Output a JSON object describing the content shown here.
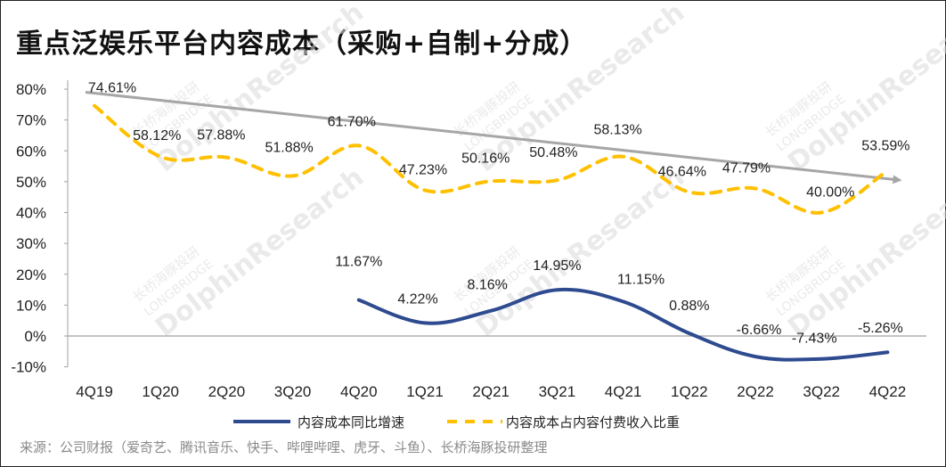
{
  "title": "重点泛娱乐平台内容成本（采购+自制+分成）",
  "source": "来源：公司财报（爱奇艺、腾讯音乐、快手、哔哩哔哩、虎牙、斗鱼）、长桥海豚投研整理",
  "watermark": {
    "line1": "长桥海豚投研",
    "line2": "LONGBRIDGE",
    "line3": "DolphinResearch"
  },
  "colors": {
    "blue": "#2e4b8f",
    "yellow": "#ffc000",
    "trend": "#a6a6a6",
    "axis": "#a0a0a0"
  },
  "chart_data": {
    "type": "line",
    "categories": [
      "4Q19",
      "1Q20",
      "2Q20",
      "3Q20",
      "4Q20",
      "1Q21",
      "2Q21",
      "3Q21",
      "4Q21",
      "1Q22",
      "2Q22",
      "3Q22",
      "4Q22"
    ],
    "yticks": [
      "80%",
      "70%",
      "60%",
      "50%",
      "40%",
      "30%",
      "20%",
      "10%",
      "0%",
      "-10%"
    ],
    "ylim": [
      -10,
      80
    ],
    "series": [
      {
        "name": "内容成本同比增速",
        "values": [
          null,
          null,
          null,
          null,
          11.67,
          4.22,
          8.16,
          14.95,
          11.15,
          0.88,
          -6.66,
          -7.43,
          -5.26
        ],
        "labels": [
          "",
          "",
          "",
          "",
          "11.67%",
          "4.22%",
          "8.16%",
          "14.95%",
          "11.15%",
          "0.88%",
          "-6.66%",
          "-7.43%",
          "-5.26%"
        ],
        "color": "#2e4b8f",
        "style": "solid"
      },
      {
        "name": "内容成本占内容付费收入比重",
        "values": [
          74.61,
          58.12,
          57.88,
          51.88,
          61.7,
          47.23,
          50.16,
          50.48,
          58.13,
          46.64,
          47.79,
          40.0,
          53.59
        ],
        "labels": [
          "74.61%",
          "58.12%",
          "57.88%",
          "51.88%",
          "61.70%",
          "47.23%",
          "50.16%",
          "50.48%",
          "58.13%",
          "46.64%",
          "47.79%",
          "40.00%",
          "53.59%"
        ],
        "color": "#ffc000",
        "style": "dashed"
      }
    ],
    "trendline": {
      "from": 79,
      "to": 50.5,
      "color": "#a6a6a6",
      "arrow": true
    },
    "legend_position": "bottom",
    "grid": false
  }
}
